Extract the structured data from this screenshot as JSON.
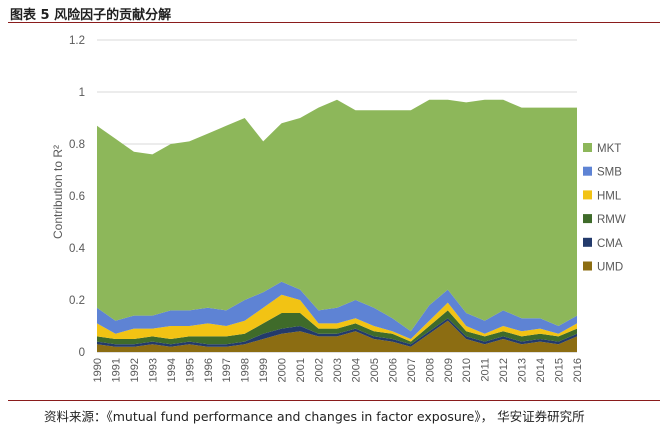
{
  "figure": {
    "title": "图表 5  风险因子的贡献分解",
    "source": "资料来源：《mutual fund performance and changes in factor exposure》， 华安证券研究所"
  },
  "chart_data": {
    "type": "area",
    "stacked": true,
    "title": "",
    "ylabel": "Contribution to R²",
    "xlabel": "",
    "ylim": [
      0,
      1.2
    ],
    "yticks": [
      "0",
      "0.2",
      "0.4",
      "0.6",
      "0.8",
      "1",
      "1.2"
    ],
    "x": [
      1990,
      1991,
      1992,
      1993,
      1994,
      1995,
      1996,
      1997,
      1998,
      1999,
      2000,
      2001,
      2002,
      2003,
      2004,
      2005,
      2006,
      2007,
      2008,
      2009,
      2010,
      2011,
      2012,
      2013,
      2014,
      2015,
      2016
    ],
    "x_labels": [
      "1990",
      "1991",
      "1992",
      "1993",
      "1994",
      "1995",
      "1996",
      "1997",
      "1998",
      "1999",
      "2000",
      "2001",
      "2002",
      "2003",
      "2004",
      "2005",
      "2006",
      "2007",
      "2008",
      "2009",
      "2010",
      "2011",
      "2012",
      "2013",
      "2014",
      "2015",
      "2016"
    ],
    "series": [
      {
        "name": "UMD",
        "color": "#8c6d12",
        "values": [
          0.03,
          0.02,
          0.02,
          0.03,
          0.02,
          0.03,
          0.02,
          0.02,
          0.03,
          0.05,
          0.07,
          0.08,
          0.06,
          0.06,
          0.08,
          0.05,
          0.04,
          0.02,
          0.07,
          0.12,
          0.05,
          0.03,
          0.05,
          0.03,
          0.04,
          0.03,
          0.06
        ]
      },
      {
        "name": "CMA",
        "color": "#233a6b",
        "values": [
          0.01,
          0.01,
          0.01,
          0.01,
          0.01,
          0.01,
          0.01,
          0.01,
          0.01,
          0.02,
          0.02,
          0.02,
          0.01,
          0.01,
          0.01,
          0.01,
          0.01,
          0.01,
          0.01,
          0.01,
          0.01,
          0.01,
          0.01,
          0.01,
          0.01,
          0.01,
          0.01
        ]
      },
      {
        "name": "RMW",
        "color": "#3f6b2a",
        "values": [
          0.02,
          0.02,
          0.02,
          0.02,
          0.02,
          0.02,
          0.03,
          0.03,
          0.03,
          0.04,
          0.06,
          0.05,
          0.02,
          0.02,
          0.02,
          0.02,
          0.02,
          0.01,
          0.02,
          0.03,
          0.02,
          0.02,
          0.02,
          0.02,
          0.02,
          0.02,
          0.02
        ]
      },
      {
        "name": "HML",
        "color": "#f2c314",
        "values": [
          0.05,
          0.02,
          0.04,
          0.03,
          0.05,
          0.04,
          0.05,
          0.04,
          0.05,
          0.06,
          0.07,
          0.05,
          0.02,
          0.02,
          0.02,
          0.02,
          0.01,
          0.01,
          0.02,
          0.03,
          0.02,
          0.01,
          0.02,
          0.02,
          0.02,
          0.01,
          0.02
        ]
      },
      {
        "name": "SMB",
        "color": "#5e83d4",
        "values": [
          0.06,
          0.05,
          0.05,
          0.05,
          0.06,
          0.06,
          0.06,
          0.06,
          0.08,
          0.06,
          0.05,
          0.04,
          0.05,
          0.06,
          0.07,
          0.07,
          0.05,
          0.03,
          0.06,
          0.05,
          0.05,
          0.05,
          0.06,
          0.05,
          0.04,
          0.03,
          0.03
        ]
      },
      {
        "name": "MKT",
        "color": "#8db75a",
        "values": [
          0.7,
          0.7,
          0.63,
          0.62,
          0.64,
          0.65,
          0.67,
          0.71,
          0.7,
          0.58,
          0.61,
          0.66,
          0.78,
          0.8,
          0.73,
          0.76,
          0.8,
          0.85,
          0.79,
          0.73,
          0.81,
          0.85,
          0.81,
          0.81,
          0.81,
          0.84,
          0.8
        ]
      }
    ],
    "legend": [
      "MKT",
      "SMB",
      "HML",
      "RMW",
      "CMA",
      "UMD"
    ],
    "legend_position": "right",
    "grid": true
  }
}
